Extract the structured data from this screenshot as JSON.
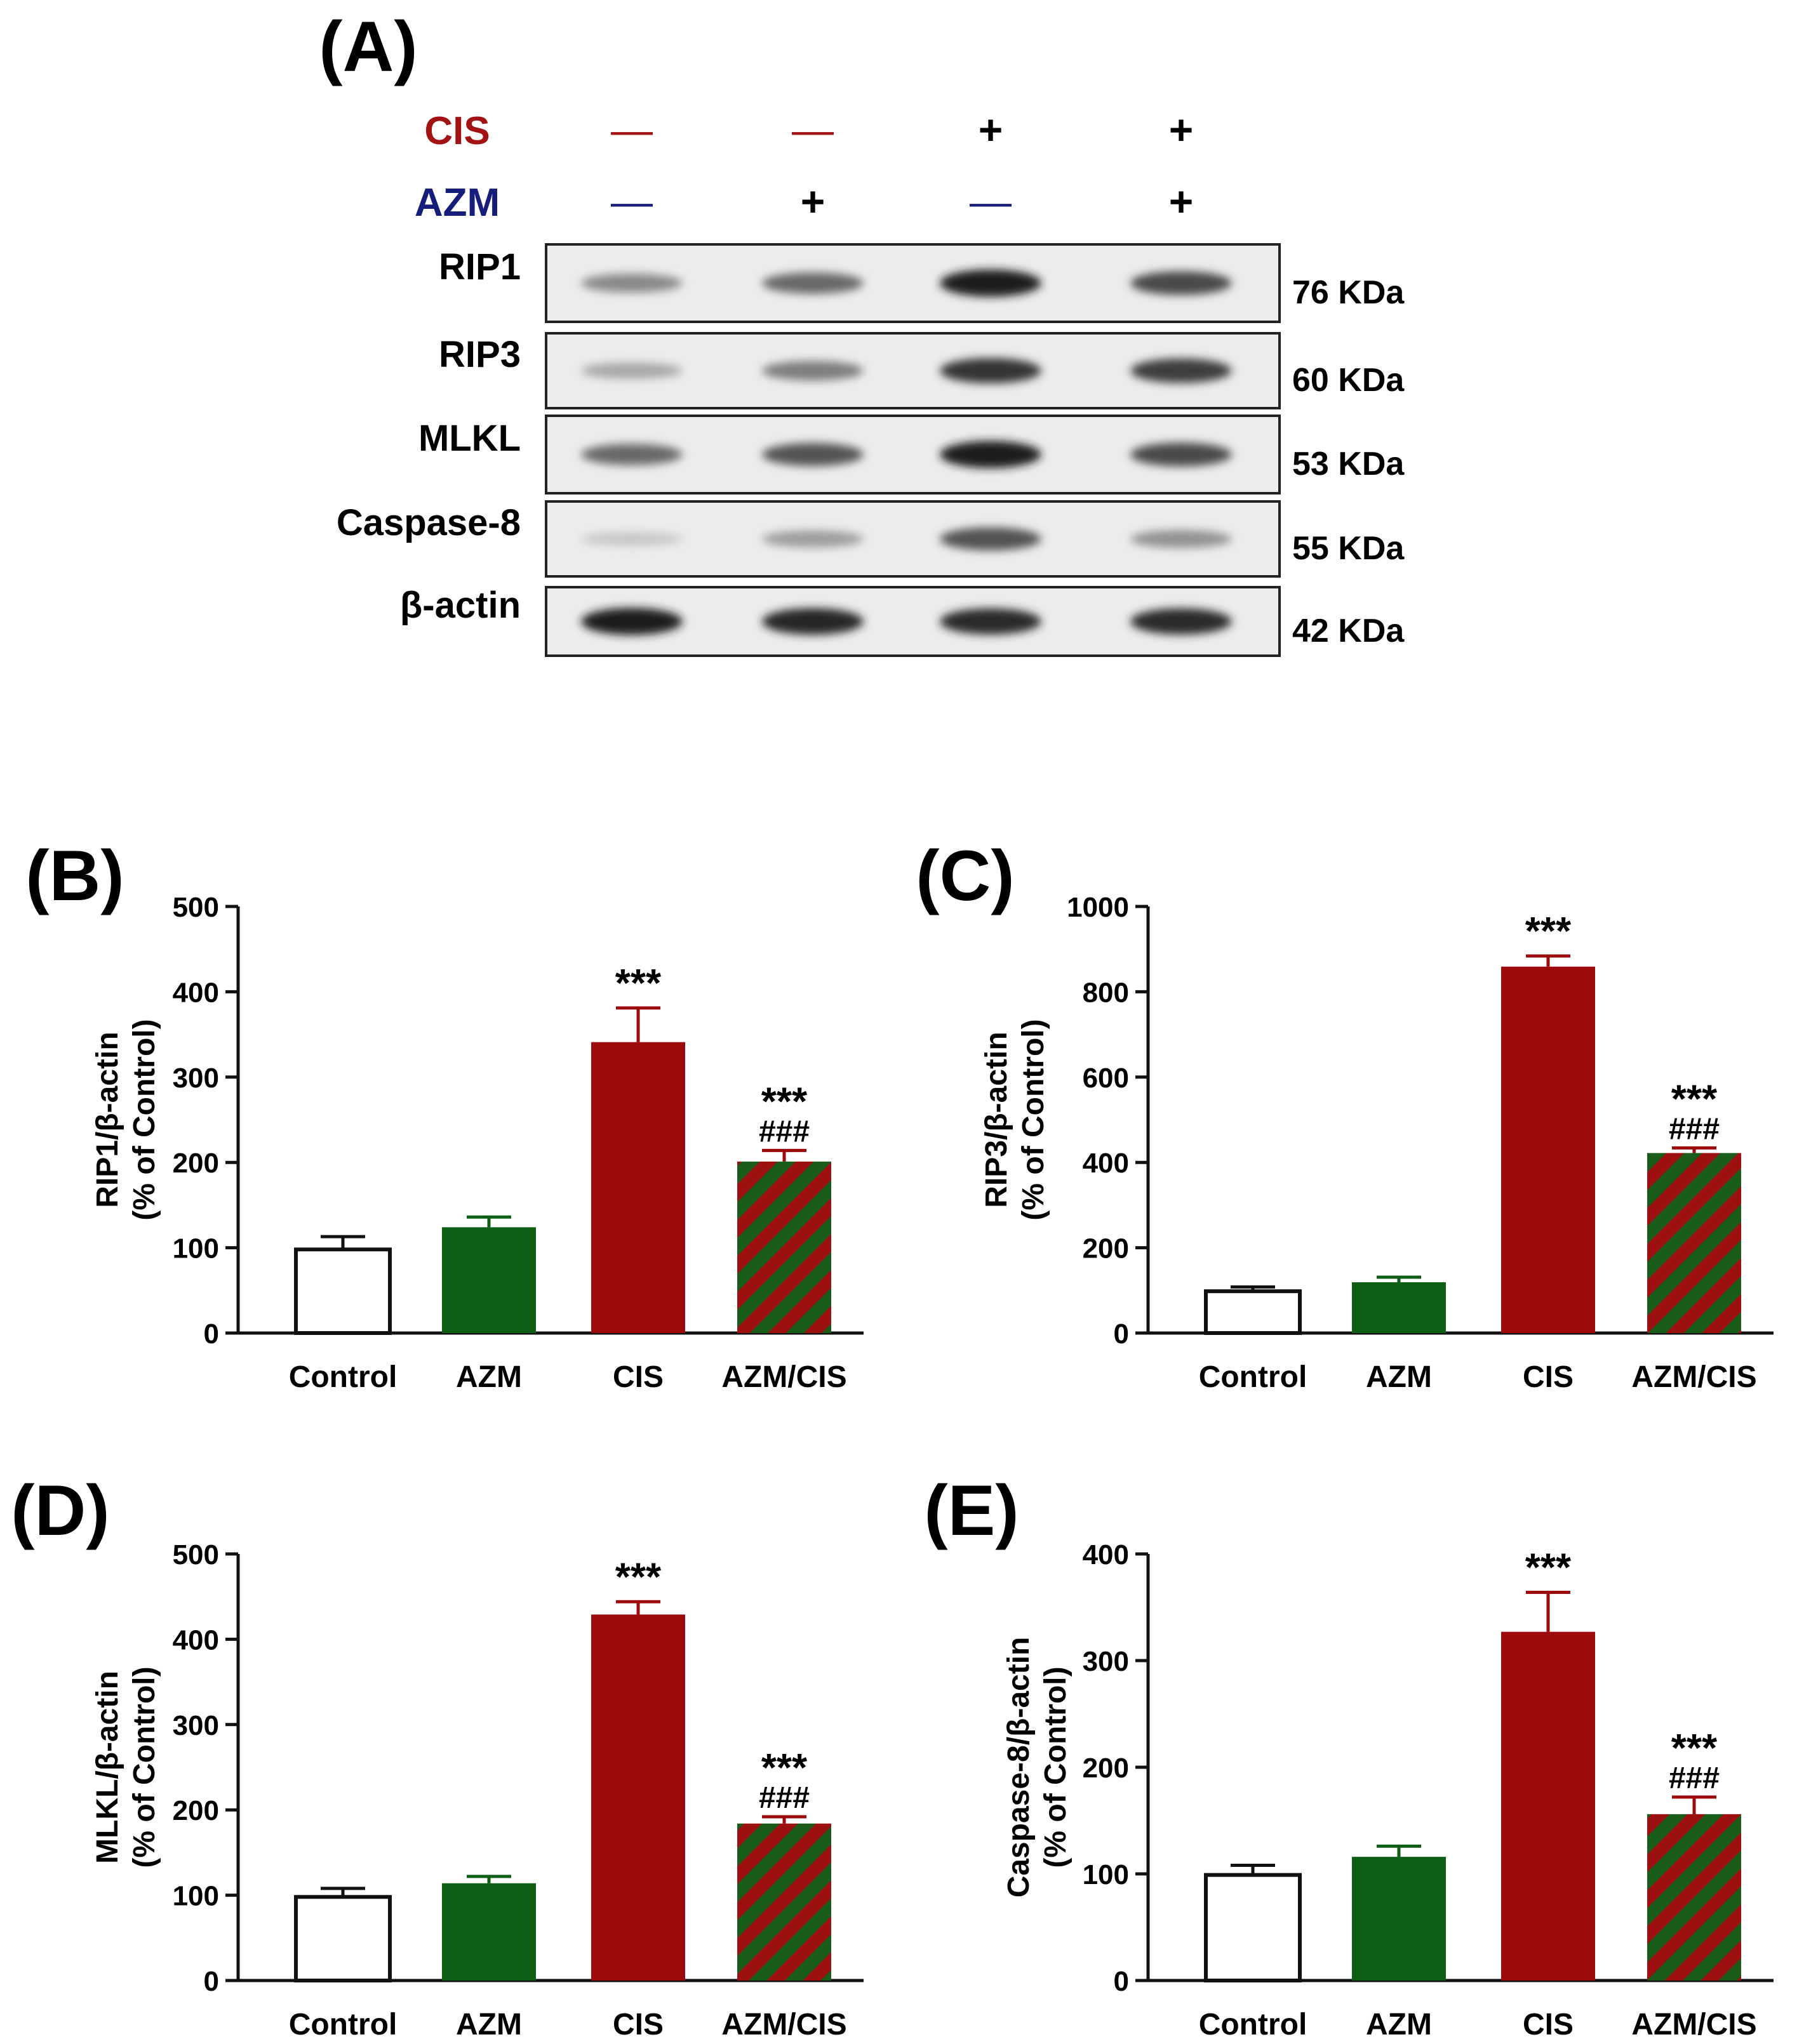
{
  "colors": {
    "cis_label": "#a31313",
    "azm_label": "#161d7a",
    "control_fill": "#ffffff",
    "azm_fill": "#0e5e16",
    "cis_fill": "#9c0a0c",
    "combo_stripe_a": "#1a5c1a",
    "combo_stripe_b": "#9c1010",
    "axis": "#111111"
  },
  "blot": {
    "panel_label": "(A)",
    "treatments": [
      {
        "label": "CIS",
        "lanes": [
          "—",
          "—",
          "+",
          "+"
        ]
      },
      {
        "label": "AZM",
        "lanes": [
          "—",
          "+",
          "—",
          "+"
        ]
      }
    ],
    "bands": [
      {
        "protein": "RIP1",
        "size": "76 KDa",
        "intensity": [
          0.45,
          0.6,
          0.95,
          0.75
        ]
      },
      {
        "protein": "RIP3",
        "size": "60 KDa",
        "intensity": [
          0.3,
          0.5,
          0.85,
          0.8
        ]
      },
      {
        "protein": "MLKL",
        "size": "53 KDa",
        "intensity": [
          0.6,
          0.7,
          0.95,
          0.75
        ]
      },
      {
        "protein": "Caspase-8",
        "size": "55 KDa",
        "intensity": [
          0.15,
          0.35,
          0.7,
          0.4
        ]
      },
      {
        "protein": "β-actin",
        "size": "42 KDa",
        "intensity": [
          0.95,
          0.92,
          0.9,
          0.9
        ]
      }
    ]
  },
  "chart_data": [
    {
      "panel": "(B)",
      "type": "bar",
      "title": "",
      "ylabel_line1": "RIP1/β-actin",
      "ylabel_line2": "(% of Control)",
      "ylim": [
        0,
        500
      ],
      "yticks": [
        "0",
        "100",
        "200",
        "300",
        "400",
        "500"
      ],
      "categories": [
        "Control",
        "AZM",
        "CIS",
        "AZM/CIS"
      ],
      "values": [
        98,
        124,
        341,
        201
      ],
      "errors": [
        15,
        12,
        40,
        13
      ],
      "annotations": [
        [
          "",
          ""
        ],
        [
          "",
          ""
        ],
        [
          "***",
          ""
        ],
        [
          "***",
          "###"
        ]
      ]
    },
    {
      "panel": "(C)",
      "type": "bar",
      "title": "",
      "ylabel_line1": "RIP3/β-actin",
      "ylabel_line2": "(% of Control)",
      "ylim": [
        0,
        1000
      ],
      "yticks": [
        "0",
        "200",
        "400",
        "600",
        "800",
        "1000"
      ],
      "categories": [
        "Control",
        "AZM",
        "CIS",
        "AZM/CIS"
      ],
      "values": [
        98,
        119,
        859,
        422
      ],
      "errors": [
        10,
        12,
        25,
        12
      ],
      "annotations": [
        [
          "",
          ""
        ],
        [
          "",
          ""
        ],
        [
          "***",
          ""
        ],
        [
          "***",
          "###"
        ]
      ]
    },
    {
      "panel": "(D)",
      "type": "bar",
      "title": "",
      "ylabel_line1": "MLKL/β-actin",
      "ylabel_line2": "(% of Control)",
      "ylim": [
        0,
        500
      ],
      "yticks": [
        "0",
        "100",
        "200",
        "300",
        "400",
        "500"
      ],
      "categories": [
        "Control",
        "AZM",
        "CIS",
        "AZM/CIS"
      ],
      "values": [
        98,
        114,
        429,
        184
      ],
      "errors": [
        10,
        8,
        15,
        8
      ],
      "annotations": [
        [
          "",
          ""
        ],
        [
          "",
          ""
        ],
        [
          "***",
          ""
        ],
        [
          "***",
          "###"
        ]
      ]
    },
    {
      "panel": "(E)",
      "type": "bar",
      "title": "",
      "ylabel_line1": "Caspase-8/β-actin",
      "ylabel_line2": "(% of Control)",
      "ylim": [
        0,
        400
      ],
      "yticks": [
        "0",
        "100",
        "200",
        "300",
        "400"
      ],
      "categories": [
        "Control",
        "AZM",
        "CIS",
        "AZM/CIS"
      ],
      "values": [
        99,
        116,
        327,
        156
      ],
      "errors": [
        9,
        10,
        37,
        16
      ],
      "annotations": [
        [
          "",
          ""
        ],
        [
          "",
          ""
        ],
        [
          "***",
          ""
        ],
        [
          "***",
          "###"
        ]
      ]
    }
  ]
}
